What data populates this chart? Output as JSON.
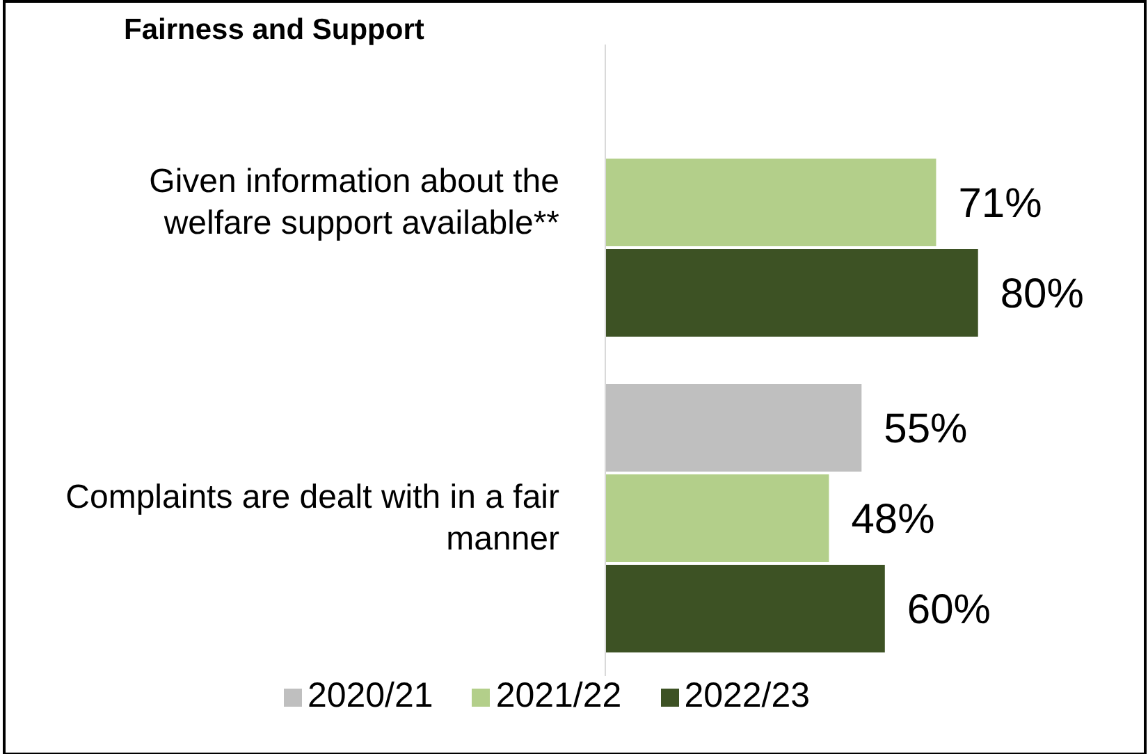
{
  "chart_data": {
    "type": "bar",
    "orientation": "horizontal",
    "title": "Fairness and Support",
    "categories": [
      "Given information about the welfare support available**",
      "Complaints are dealt with in a fair manner"
    ],
    "series": [
      {
        "name": "2020/21",
        "color": "#bfbfbf",
        "values": [
          null,
          55
        ],
        "value_labels": [
          null,
          "55%"
        ]
      },
      {
        "name": "2021/22",
        "color": "#b3cf8a",
        "values": [
          71,
          48
        ],
        "value_labels": [
          "71%",
          "48%"
        ]
      },
      {
        "name": "2022/23",
        "color": "#3d5224",
        "values": [
          80,
          60
        ],
        "value_labels": [
          "80%",
          "60%"
        ]
      }
    ],
    "data_labels": true,
    "legend": "bottom",
    "grid": false
  }
}
